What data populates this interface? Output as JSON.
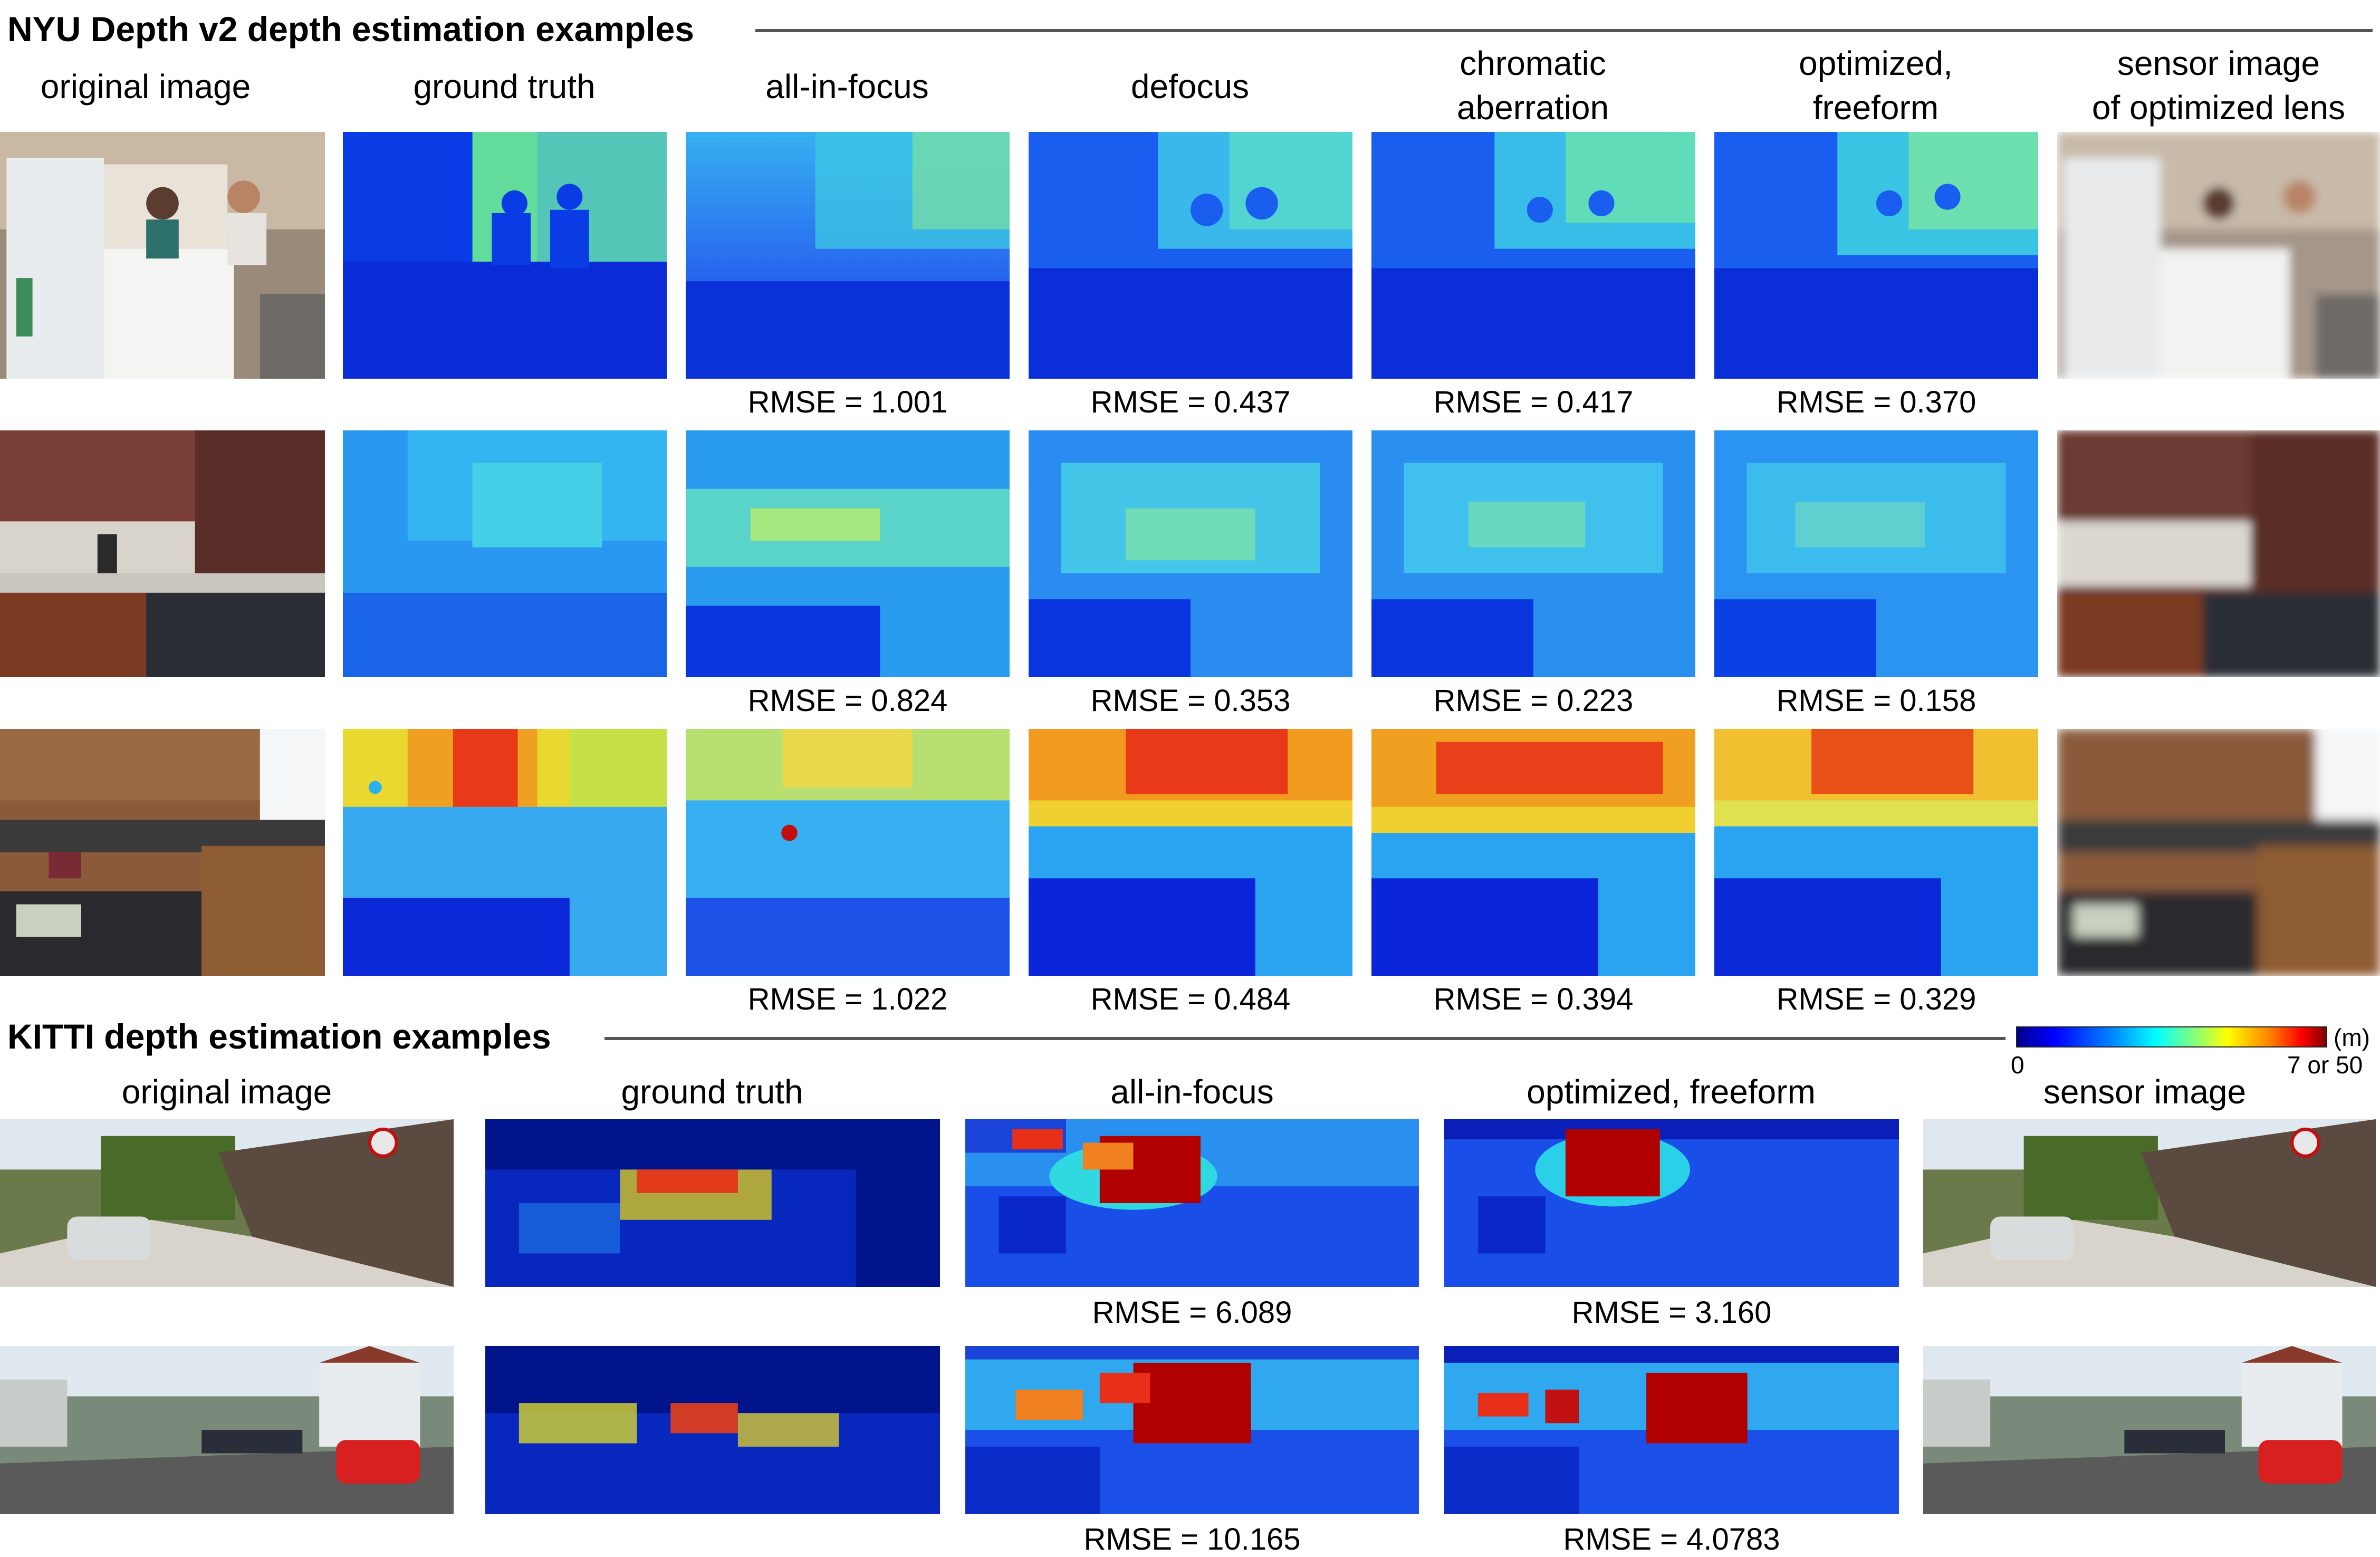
{
  "nyu": {
    "title": "NYU Depth v2 depth estimation examples",
    "columns": [
      [
        "original image"
      ],
      [
        "ground truth"
      ],
      [
        "all-in-focus"
      ],
      [
        "defocus"
      ],
      [
        "chromatic",
        "aberration"
      ],
      [
        "optimized,",
        "freeform"
      ],
      [
        "sensor image",
        "of optimized lens"
      ]
    ],
    "rows": [
      {
        "rmse": [
          "RMSE = 1.001",
          "RMSE = 0.437",
          "RMSE = 0.417",
          "RMSE = 0.370"
        ]
      },
      {
        "rmse": [
          "RMSE = 0.824",
          "RMSE = 0.353",
          "RMSE = 0.223",
          "RMSE = 0.158"
        ]
      },
      {
        "rmse": [
          "RMSE = 1.022",
          "RMSE = 0.484",
          "RMSE = 0.394",
          "RMSE = 0.329"
        ]
      }
    ]
  },
  "kitti": {
    "title": "KITTI depth estimation examples",
    "columns": [
      "original image",
      "ground truth",
      "all-in-focus",
      "optimized, freeform",
      "sensor image"
    ],
    "rows": [
      {
        "rmse": [
          "RMSE = 6.089",
          "RMSE = 3.160"
        ]
      },
      {
        "rmse": [
          "RMSE = 10.165",
          "RMSE = 4.0783"
        ]
      }
    ]
  },
  "colorbar": {
    "unit": "(m)",
    "min_label": "0",
    "max_label": "7 or 50",
    "colors": [
      "#00008f",
      "#0000ff",
      "#0080ff",
      "#00ffff",
      "#80ff80",
      "#ffff00",
      "#ff8000",
      "#ff0000",
      "#800000"
    ]
  }
}
